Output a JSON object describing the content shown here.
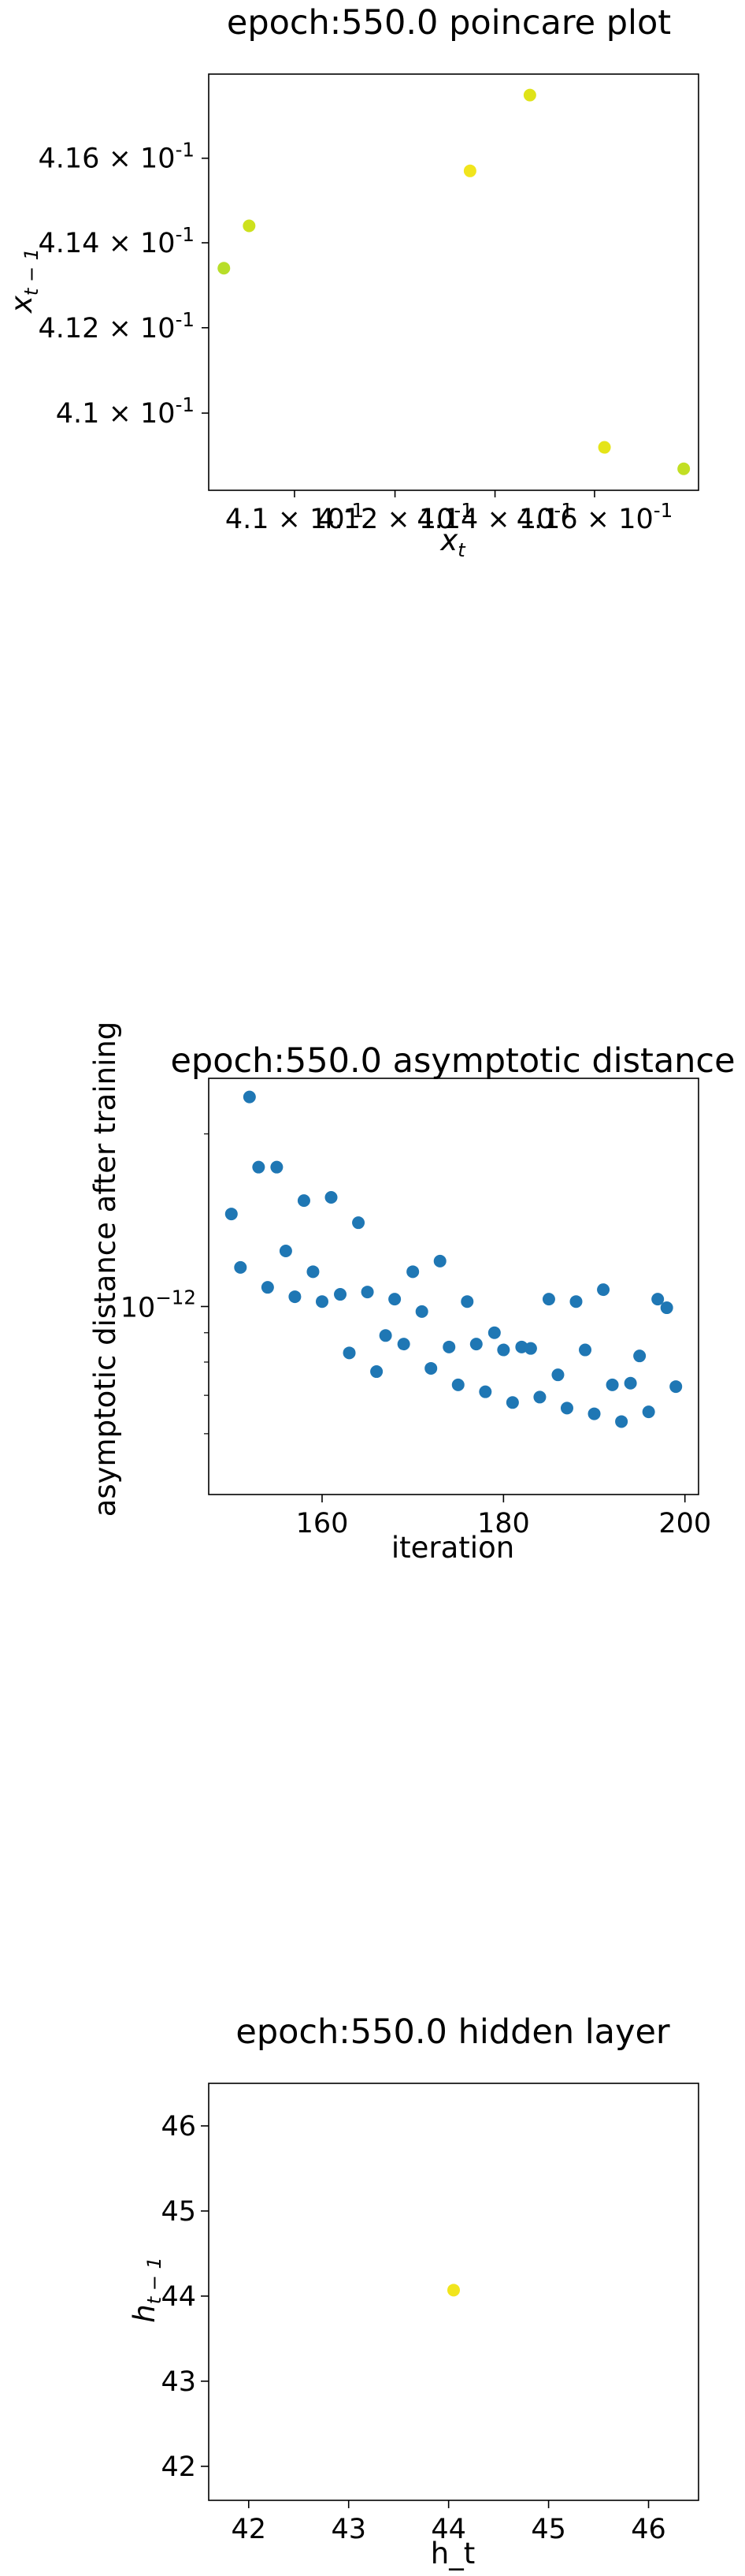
{
  "chart_data": [
    {
      "type": "scatter",
      "title": "epoch:550.0 poincare plot",
      "xlabel": "x_t",
      "ylabel": "x_{t-1}",
      "xscale": "log",
      "yscale": "log",
      "xlim": [
        0.4083,
        0.4181
      ],
      "ylim": [
        0.4082,
        0.418
      ],
      "x_ticks": [
        {
          "value": 0.41,
          "mantissa": "4.1",
          "exp": "-1"
        },
        {
          "value": 0.412,
          "mantissa": "4.12",
          "exp": "-1"
        },
        {
          "value": 0.414,
          "mantissa": "4.14",
          "exp": "-1"
        },
        {
          "value": 0.416,
          "mantissa": "4.16",
          "exp": "-1"
        }
      ],
      "y_ticks": [
        {
          "value": 0.41,
          "mantissa": "4.1",
          "exp": "-1"
        },
        {
          "value": 0.412,
          "mantissa": "4.12",
          "exp": "-1"
        },
        {
          "value": 0.414,
          "mantissa": "4.14",
          "exp": "-1"
        },
        {
          "value": 0.416,
          "mantissa": "4.16",
          "exp": "-1"
        }
      ],
      "grid": false,
      "points": [
        {
          "x": 0.4086,
          "y": 0.4134,
          "color": "#b8de29"
        },
        {
          "x": 0.4091,
          "y": 0.4144,
          "color": "#cde11d"
        },
        {
          "x": 0.4135,
          "y": 0.4157,
          "color": "#f1e51d"
        },
        {
          "x": 0.4147,
          "y": 0.4175,
          "color": "#dfe318"
        },
        {
          "x": 0.4162,
          "y": 0.4092,
          "color": "#e5e419"
        },
        {
          "x": 0.4178,
          "y": 0.4087,
          "color": "#c2df23"
        }
      ]
    },
    {
      "type": "scatter",
      "title": "epoch:550.0 asymptotic distance",
      "xlabel": "iteration",
      "ylabel": "asymptotic distance after training",
      "yscale": "log",
      "xlim": [
        147.5,
        201.5
      ],
      "ylim": [
        4.7e-13,
        2.5e-12
      ],
      "x_ticks": [
        160,
        180,
        200
      ],
      "y_major_ticks": [
        {
          "value": 1e-12,
          "mantissa": "10",
          "exp": "−12"
        }
      ],
      "y_minor_ticks": [
        6e-13,
        7e-13,
        8e-13,
        9e-13,
        2e-12
      ],
      "grid": false,
      "color": "#1f77b4",
      "x": [
        150,
        151,
        152,
        153,
        154,
        155,
        156,
        157,
        158,
        159,
        160,
        161,
        162,
        163,
        164,
        165,
        166,
        167,
        168,
        169,
        170,
        171,
        172,
        173,
        174,
        175,
        176,
        177,
        178,
        179,
        180,
        181,
        182,
        183,
        184,
        185,
        186,
        187,
        188,
        189,
        190,
        191,
        192,
        193,
        194,
        195,
        196,
        197,
        198,
        199
      ],
      "y": [
        1.45e-12,
        1.17e-12,
        2.32e-12,
        1.75e-12,
        1.08e-12,
        1.75e-12,
        1.25e-12,
        1.04e-12,
        1.53e-12,
        1.15e-12,
        1.02e-12,
        1.55e-12,
        1.05e-12,
        8.3e-13,
        1.4e-12,
        1.06e-12,
        7.7e-13,
        8.9e-13,
        1.03e-12,
        8.6e-13,
        1.15e-12,
        9.8e-13,
        7.8e-13,
        1.2e-12,
        8.5e-13,
        7.3e-13,
        1.02e-12,
        8.6e-13,
        7.1e-13,
        9e-13,
        8.4e-13,
        6.8e-13,
        8.5e-13,
        8.45e-13,
        6.95e-13,
        1.03e-12,
        7.6e-13,
        6.65e-13,
        1.02e-12,
        8.4e-13,
        6.5e-13,
        1.07e-12,
        7.3e-13,
        6.3e-13,
        7.35e-13,
        8.2e-13,
        6.55e-13,
        1.03e-12,
        9.95e-13,
        7.25e-13
      ]
    },
    {
      "type": "scatter",
      "title": "epoch:550.0 hidden layer",
      "xlabel": "h_t",
      "ylabel": "h_{t-1}",
      "xlim": [
        41.6,
        46.5
      ],
      "ylim": [
        41.6,
        46.5
      ],
      "x_ticks": [
        42,
        43,
        44,
        45,
        46
      ],
      "y_ticks": [
        42,
        43,
        44,
        45,
        46
      ],
      "grid": false,
      "points": [
        {
          "x": 44.05,
          "y": 44.07,
          "color": "#f1e51d"
        }
      ]
    }
  ]
}
